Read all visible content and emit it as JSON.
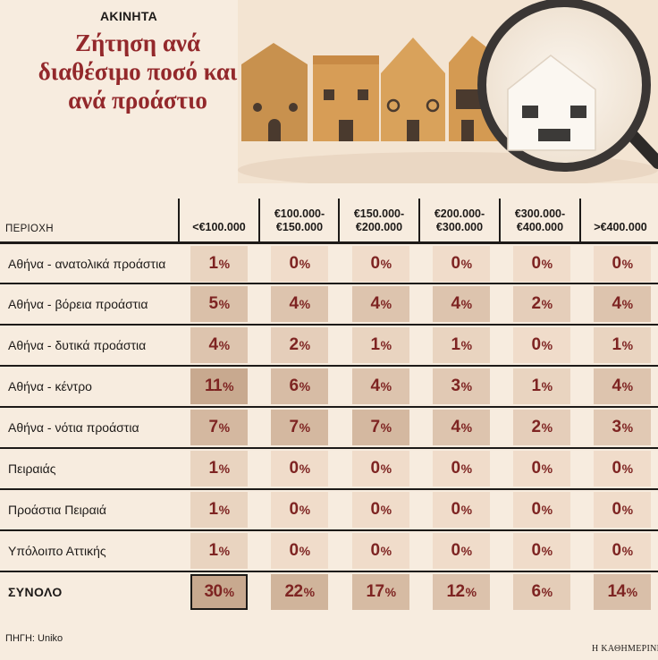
{
  "kicker": "ΑΚΙΝΗΤΑ",
  "title": "Ζήτηση ανά διαθέσιμο ποσό και ανά προάστιο",
  "source": "ΠΗΓΗ: Uniko",
  "brand": "Η ΚΑΘΗΜΕΡΙΝΗ",
  "colors": {
    "background": "#f7ecdf",
    "title": "#93282b",
    "value_text": "#7e2422",
    "cell_base": "#f0dcca",
    "cell_darkest": "#c8a98f"
  },
  "chart_data": {
    "type": "heatmap",
    "title": "Ζήτηση ανά διαθέσιμο ποσό και ανά προάστιο",
    "row_header": "ΠΕΡΙΟΧΗ",
    "columns": [
      "<€100.000",
      "€100.000-\n€150.000",
      "€150.000-\n€200.000",
      "€200.000-\n€300.000",
      "€300.000-\n€400.000",
      ">€400.000"
    ],
    "unit": "%",
    "rows": [
      {
        "label": "Αθήνα - ανατολικά προάστια",
        "values": [
          1,
          0,
          0,
          0,
          0,
          0
        ]
      },
      {
        "label": "Αθήνα - βόρεια προάστια",
        "values": [
          5,
          4,
          4,
          4,
          2,
          4
        ]
      },
      {
        "label": "Αθήνα - δυτικά προάστια",
        "values": [
          4,
          2,
          1,
          1,
          0,
          1
        ]
      },
      {
        "label": "Αθήνα - κέντρο",
        "values": [
          11,
          6,
          4,
          3,
          1,
          4
        ]
      },
      {
        "label": "Αθήνα - νότια προάστια",
        "values": [
          7,
          7,
          7,
          4,
          2,
          3
        ]
      },
      {
        "label": "Πειραιάς",
        "values": [
          1,
          0,
          0,
          0,
          0,
          0
        ]
      },
      {
        "label": "Προάστια Πειραιά",
        "values": [
          1,
          0,
          0,
          0,
          0,
          0
        ]
      },
      {
        "label": "Υπόλοιπο Αττικής",
        "values": [
          1,
          0,
          0,
          0,
          0,
          0
        ]
      }
    ],
    "total": {
      "label": "ΣΥΝΟΛΟ",
      "values": [
        30,
        22,
        17,
        12,
        6,
        14
      ]
    },
    "highlighted_cell": "ΣΥΝΟΛΟ / <€100.000"
  }
}
